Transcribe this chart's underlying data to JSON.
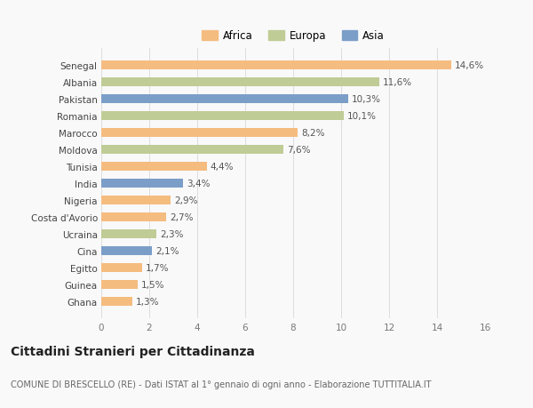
{
  "countries": [
    "Ghana",
    "Guinea",
    "Egitto",
    "Cina",
    "Ucraina",
    "Costa d'Avorio",
    "Nigeria",
    "India",
    "Tunisia",
    "Moldova",
    "Marocco",
    "Romania",
    "Pakistan",
    "Albania",
    "Senegal"
  ],
  "values": [
    1.3,
    1.5,
    1.7,
    2.1,
    2.3,
    2.7,
    2.9,
    3.4,
    4.4,
    7.6,
    8.2,
    10.1,
    10.3,
    11.6,
    14.6
  ],
  "continents": [
    "Africa",
    "Africa",
    "Africa",
    "Asia",
    "Europa",
    "Africa",
    "Africa",
    "Asia",
    "Africa",
    "Europa",
    "Africa",
    "Europa",
    "Asia",
    "Europa",
    "Africa"
  ],
  "colors": {
    "Africa": "#F5BC80",
    "Europa": "#BFCC96",
    "Asia": "#7B9EC8"
  },
  "legend_labels": [
    "Africa",
    "Europa",
    "Asia"
  ],
  "legend_colors": [
    "#F5BC80",
    "#BFCC96",
    "#7B9EC8"
  ],
  "xlim": [
    0,
    16
  ],
  "xticks": [
    0,
    2,
    4,
    6,
    8,
    10,
    12,
    14,
    16
  ],
  "title": "Cittadini Stranieri per Cittadinanza",
  "subtitle": "COMUNE DI BRESCELLO (RE) - Dati ISTAT al 1° gennaio di ogni anno - Elaborazione TUTTITALIA.IT",
  "bg_color": "#f9f9f9",
  "bar_height": 0.55,
  "label_fontsize": 7.5,
  "ylabel_fontsize": 8,
  "xlabel_fontsize": 8.5,
  "title_fontsize": 10,
  "subtitle_fontsize": 7,
  "legend_fontsize": 8.5
}
